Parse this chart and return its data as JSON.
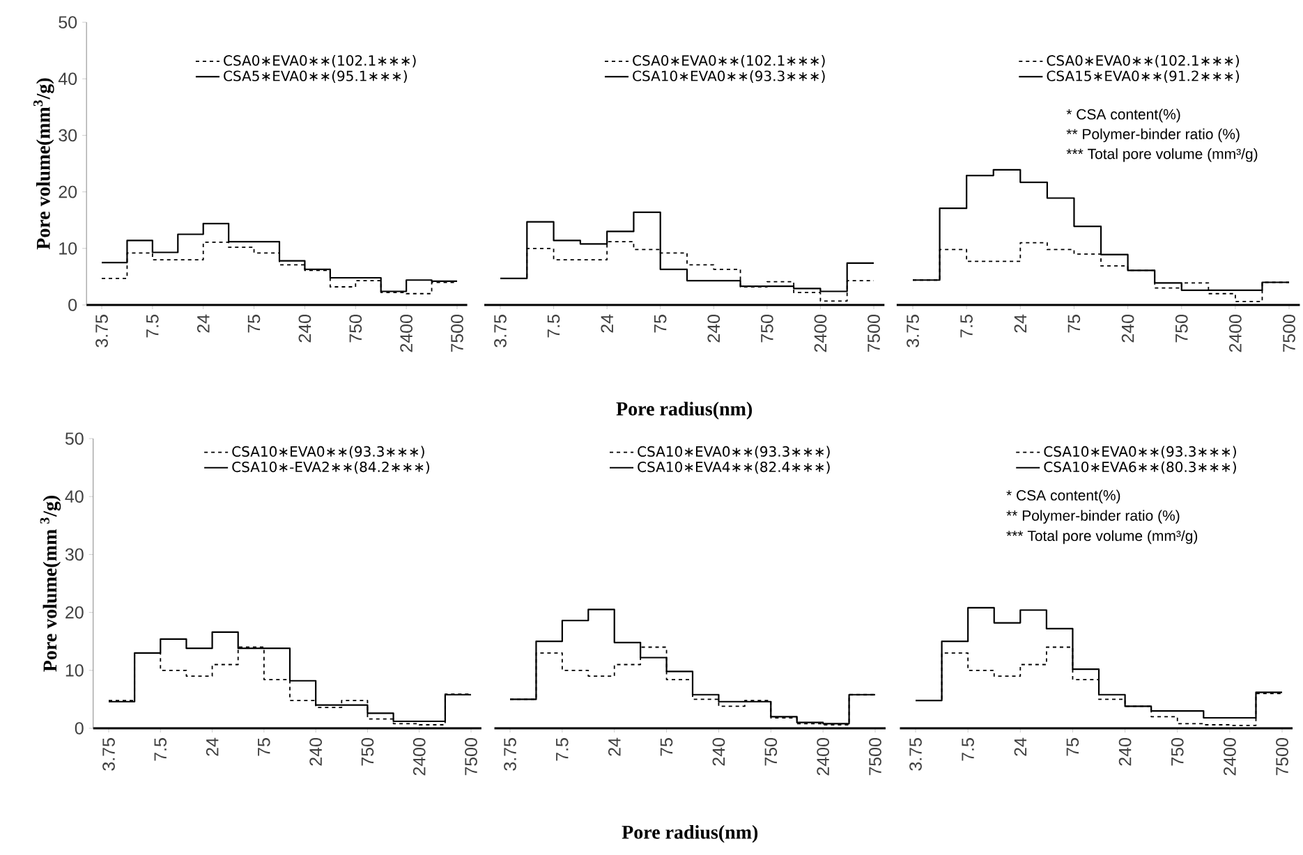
{
  "chart_data": [
    {
      "type": "step",
      "ylabel": "Pore volume(mm$^{3}$/g)",
      "categories": [
        "3.75",
        null,
        "7.5",
        null,
        "24",
        null,
        "75",
        null,
        "240",
        null,
        "750",
        null,
        "2400",
        null,
        "7500"
      ],
      "ylim": [
        0,
        50
      ],
      "yticks": [
        0,
        10,
        20,
        30,
        40,
        50
      ],
      "legend": "top",
      "series": [
        {
          "name": "CSA0∗EVA0∗∗(102.1∗∗∗)",
          "color": "#000000",
          "line_style": "dashed",
          "values": [
            4.7,
            9.2,
            8.0,
            8.0,
            11.1,
            10.2,
            9.2,
            7.1,
            6.1,
            3.2,
            4.3,
            2.2,
            2.0,
            4.0,
            4.0
          ]
        },
        {
          "name": "CSA5∗EVA0∗∗(95.1∗∗∗)",
          "color": "#000000",
          "line_style": "solid",
          "values": [
            7.5,
            11.4,
            9.3,
            12.5,
            14.4,
            11.2,
            11.2,
            7.8,
            6.3,
            4.8,
            4.8,
            2.4,
            4.4,
            4.2,
            4.2
          ]
        }
      ]
    },
    {
      "type": "step",
      "xlabel": "Pore radius(nm)",
      "categories": [
        "3.75",
        null,
        "7.5",
        null,
        "24",
        null,
        "75",
        null,
        "240",
        null,
        "750",
        null,
        "2400",
        null,
        "7500"
      ],
      "ylim": [
        0,
        50
      ],
      "yticks": [
        0,
        10,
        20,
        30,
        40,
        50
      ],
      "tick_labels": "x",
      "legend": "top",
      "series": [
        {
          "name": "CSA0∗EVA0∗∗(102.1∗∗∗)",
          "color": "#000000",
          "line_style": "dashed",
          "values": [
            4.7,
            10.0,
            8.0,
            8.0,
            11.2,
            9.8,
            9.2,
            7.1,
            6.3,
            3.2,
            4.1,
            2.2,
            0.7,
            4.3,
            4.3
          ]
        },
        {
          "name": "CSA10∗EVA0∗∗(93.3∗∗∗)",
          "color": "#000000",
          "line_style": "solid",
          "values": [
            4.7,
            14.7,
            11.4,
            10.8,
            13.0,
            16.4,
            6.3,
            4.3,
            4.3,
            3.3,
            3.3,
            2.9,
            2.4,
            7.4,
            7.4
          ]
        }
      ]
    },
    {
      "type": "step",
      "categories": [
        "3.75",
        null,
        "7.5",
        null,
        "24",
        null,
        "75",
        null,
        "240",
        null,
        "750",
        null,
        "2400",
        null,
        "7500"
      ],
      "ylim": [
        0,
        50
      ],
      "yticks": [
        0,
        10,
        20,
        30,
        40,
        50
      ],
      "tick_labels": "x",
      "legend": "top",
      "annotations": [
        "* CSA content(%)",
        "** Polymer-binder ratio  (%)",
        "*** Total  pore volume (mm³/g)"
      ],
      "series": [
        {
          "name": "CSA0∗EVA0∗∗(102.1∗∗∗)",
          "color": "#000000",
          "line_style": "dashed",
          "values": [
            4.4,
            9.8,
            7.7,
            7.7,
            11.0,
            9.8,
            9.0,
            6.9,
            6.1,
            3.0,
            3.9,
            2.0,
            0.6,
            4.0,
            4.0
          ]
        },
        {
          "name": "CSA15∗EVA0∗∗(91.2∗∗∗)",
          "color": "#000000",
          "line_style": "solid",
          "values": [
            4.4,
            17.1,
            22.9,
            23.9,
            21.7,
            18.9,
            13.9,
            8.9,
            6.1,
            3.9,
            2.6,
            2.6,
            2.6,
            4.0,
            4.0
          ]
        }
      ]
    },
    {
      "type": "step",
      "ylabel": "Pore volume(mm $^{3}$/g)",
      "categories": [
        "3.75",
        null,
        "7.5",
        null,
        "24",
        null,
        "75",
        null,
        "240",
        null,
        "750",
        null,
        "2400",
        null,
        "7500"
      ],
      "ylim": [
        0,
        50
      ],
      "yticks": [
        0,
        10,
        20,
        30,
        40,
        50
      ],
      "legend": "top",
      "series": [
        {
          "name": "CSA10∗EVA0∗∗(93.3∗∗∗)",
          "color": "#000000",
          "line_style": "dashed",
          "values": [
            4.8,
            13.0,
            10.0,
            9.0,
            11.0,
            14.0,
            8.4,
            4.8,
            3.6,
            4.8,
            1.6,
            0.8,
            0.6,
            5.9,
            5.9
          ]
        },
        {
          "name": "CSA10∗-EVA2∗∗(84.2∗∗∗)",
          "color": "#000000",
          "line_style": "solid",
          "values": [
            4.6,
            13.0,
            15.4,
            13.8,
            16.6,
            13.8,
            13.8,
            8.2,
            4.0,
            4.0,
            2.6,
            1.2,
            1.2,
            5.8,
            5.8
          ]
        }
      ]
    },
    {
      "type": "step",
      "xlabel": "Pore radius(nm)",
      "categories": [
        "3.75",
        null,
        "7.5",
        null,
        "24",
        null,
        "75",
        null,
        "240",
        null,
        "750",
        null,
        "2400",
        null,
        "7500"
      ],
      "ylim": [
        0,
        50
      ],
      "yticks": [
        0,
        10,
        20,
        30,
        40,
        50
      ],
      "tick_labels": "x",
      "legend": "top",
      "series": [
        {
          "name": "CSA10∗EVA0∗∗(93.3∗∗∗)",
          "color": "#000000",
          "line_style": "dashed",
          "values": [
            5.0,
            13.0,
            10.0,
            9.0,
            11.0,
            14.0,
            8.4,
            5.0,
            3.8,
            4.8,
            1.8,
            0.8,
            0.6,
            5.8,
            5.8
          ]
        },
        {
          "name": "CSA10∗EVA4∗∗(82.4∗∗∗)",
          "color": "#000000",
          "line_style": "solid",
          "values": [
            5.0,
            15.0,
            18.6,
            20.5,
            14.8,
            12.2,
            9.8,
            5.8,
            4.6,
            4.6,
            2.0,
            1.0,
            0.8,
            5.8,
            5.8
          ]
        }
      ]
    },
    {
      "type": "step",
      "categories": [
        "3.75",
        null,
        "7.5",
        null,
        "24",
        null,
        "75",
        null,
        "240",
        null,
        "750",
        null,
        "2400",
        null,
        "7500"
      ],
      "ylim": [
        0,
        50
      ],
      "yticks": [
        0,
        10,
        20,
        30,
        40,
        50
      ],
      "tick_labels": "x",
      "legend": "top",
      "annotations": [
        "* CSA content(%)",
        "** Polymer-binder ratio  (%)",
        "*** Total  pore volume (mm³/g)"
      ],
      "series": [
        {
          "name": "CSA10∗EVA0∗∗(93.3∗∗∗)",
          "color": "#000000",
          "line_style": "dashed",
          "values": [
            4.8,
            13.0,
            10.0,
            9.0,
            11.0,
            14.0,
            8.4,
            5.0,
            3.8,
            2.0,
            0.8,
            0.6,
            0.5,
            6.0,
            6.0
          ]
        },
        {
          "name": "CSA10∗EVA6∗∗(80.3∗∗∗)",
          "color": "#000000",
          "line_style": "solid",
          "values": [
            4.8,
            15.0,
            20.8,
            18.2,
            20.4,
            17.2,
            10.2,
            5.8,
            3.8,
            3.0,
            3.0,
            1.8,
            1.8,
            6.2,
            6.2
          ]
        }
      ]
    }
  ]
}
